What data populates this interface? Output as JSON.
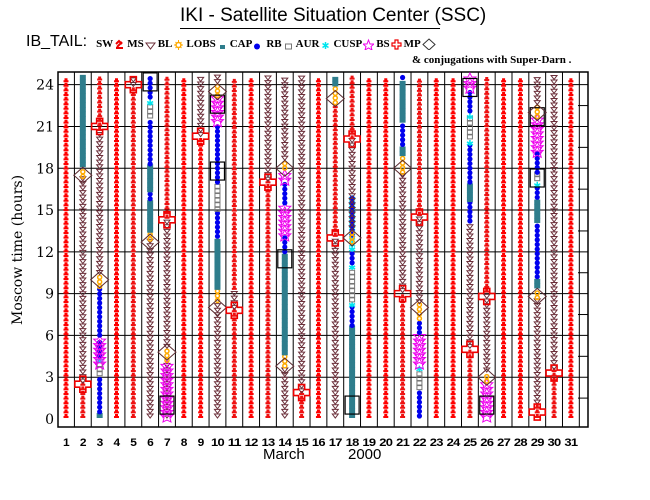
{
  "title": "IKI - Satellite Situation Center (SSC)",
  "legend": {
    "prefix": "IB_TAIL:",
    "items": [
      {
        "label": "SW",
        "region": "SW",
        "color": "#ff0000",
        "symbol": "sw-mark"
      },
      {
        "label": "MS",
        "region": "MS",
        "color": "#ee1111",
        "symbol": "ms-mark"
      },
      {
        "label": "BL",
        "region": "BL",
        "color": "#6b2f3a",
        "symbol": "triangle-down"
      },
      {
        "label": "LOBS",
        "region": "LOBS",
        "color": "#ffaa00",
        "symbol": "sun"
      },
      {
        "label": "CAP",
        "region": "CAP",
        "color": "#2e7d8c",
        "symbol": "square-filled"
      },
      {
        "label": "RB",
        "region": "RB",
        "color": "#0000ee",
        "symbol": "dot"
      },
      {
        "label": "AUR",
        "region": "AUR",
        "color": "#777777",
        "symbol": "square-open"
      },
      {
        "label": "CUSP",
        "region": "CUSP",
        "color": "#00e5ee",
        "symbol": "asterisk"
      },
      {
        "label": "BS",
        "region": "BS",
        "color": "#ee00ee",
        "symbol": "star"
      },
      {
        "label": "MP",
        "region": "MP",
        "color": "#ee0000",
        "symbol": "cross"
      }
    ],
    "diamond_note": "& conjugations with Super-Darn ."
  },
  "chart_data": {
    "type": "timeline",
    "title": "IKI - Satellite Situation Center (SSC)",
    "xlabel": "March",
    "xlabel_year": "2000",
    "ylabel": "Moscow time (hours)",
    "x_ticks": [
      1,
      2,
      3,
      4,
      5,
      6,
      7,
      8,
      9,
      10,
      11,
      12,
      13,
      14,
      15,
      16,
      17,
      18,
      19,
      20,
      21,
      22,
      23,
      24,
      25,
      26,
      27,
      28,
      29,
      30,
      31
    ],
    "y_ticks": [
      0,
      3,
      6,
      9,
      12,
      15,
      18,
      21,
      24
    ],
    "xlim": [
      1,
      32
    ],
    "ylim": [
      0,
      24.5
    ],
    "grid": true,
    "colors": {
      "SW": "#ff0000",
      "MS": "#ee1111",
      "BL": "#6b2f3a",
      "LOBS": "#ffaa00",
      "CAP": "#2e7d8c",
      "RB": "#0000ee",
      "AUR": "#777777",
      "CUSP": "#00e5ee",
      "BS": "#ee00ee",
      "MP": "#ee0000"
    },
    "days": [
      {
        "day": 1,
        "segments": [
          [
            "SW",
            0,
            24.5
          ]
        ]
      },
      {
        "day": 2,
        "segments": [
          [
            "MS",
            0,
            2.5
          ],
          [
            "BL",
            2.5,
            17.2
          ],
          [
            "LOBS",
            17.2,
            18
          ],
          [
            "CAP",
            18,
            24.5
          ]
        ],
        "mp": [
          2.5
        ],
        "diamonds": [
          17.5
        ]
      },
      {
        "day": 3,
        "segments": [
          [
            "CAP",
            0,
            0.3
          ],
          [
            "RB",
            0.3,
            3
          ],
          [
            "AUR",
            3,
            4
          ],
          [
            "CUSP",
            4,
            4.3
          ],
          [
            "RB",
            4.3,
            5.5
          ],
          [
            "BS",
            3.8,
            5.8
          ],
          [
            "RB",
            5.8,
            9.3
          ],
          [
            "LOBS",
            9.3,
            10.3
          ],
          [
            "BL",
            10.3,
            20.6
          ],
          [
            "MS",
            20.6,
            24.5
          ]
        ],
        "mp": [
          21
        ],
        "diamonds": [
          10
        ]
      },
      {
        "day": 4,
        "segments": [
          [
            "SW",
            0,
            24.5
          ]
        ]
      },
      {
        "day": 5,
        "segments": [
          [
            "MS",
            0,
            23.8
          ],
          [
            "BL",
            23.8,
            24.5
          ]
        ],
        "mp": [
          24
        ]
      },
      {
        "day": 6,
        "segments": [
          [
            "BL",
            0,
            12.7
          ],
          [
            "LOBS",
            12.7,
            13.3
          ],
          [
            "CAP",
            13.3,
            15.6
          ],
          [
            "RB",
            15.6,
            16.2
          ],
          [
            "CAP",
            16.2,
            18.1
          ],
          [
            "RB",
            18.1,
            21.5
          ],
          [
            "AUR",
            21.5,
            22.5
          ],
          [
            "CUSP",
            22.5,
            22.9
          ],
          [
            "RB",
            22.9,
            24.5
          ]
        ],
        "diamonds": [
          12.7
        ],
        "boxes": [
          24.2
        ]
      },
      {
        "day": 7,
        "segments": [
          [
            "BL",
            0,
            4
          ],
          [
            "BS",
            0,
            3.8
          ],
          [
            "LOBS",
            4,
            5
          ],
          [
            "BL",
            5,
            14.3
          ],
          [
            "MS",
            14.3,
            24.5
          ]
        ],
        "mp": [
          14.3
        ],
        "diamonds": [
          4.8
        ],
        "boxes": [
          1
        ]
      },
      {
        "day": 8,
        "segments": [
          [
            "SW",
            0,
            24.5
          ]
        ]
      },
      {
        "day": 9,
        "segments": [
          [
            "SW",
            0,
            20.2
          ],
          [
            "BL",
            20.2,
            24.5
          ]
        ],
        "mp": [
          20.3
        ]
      },
      {
        "day": 10,
        "segments": [
          [
            "BL",
            0,
            8.3
          ],
          [
            "LOBS",
            8.3,
            9.2
          ],
          [
            "CAP",
            9.2,
            12.9
          ],
          [
            "RB",
            12.9,
            14.8
          ],
          [
            "AUR",
            14.8,
            16.8
          ],
          [
            "RB",
            16.8,
            21.2
          ],
          [
            "BS",
            21.2,
            23
          ],
          [
            "LOBS",
            23,
            24
          ],
          [
            "BL",
            24,
            24.5
          ]
        ],
        "diamonds": [
          8,
          23.5
        ],
        "boxes": [
          17.8,
          22.6
        ]
      },
      {
        "day": 11,
        "segments": [
          [
            "MS",
            0,
            7.8
          ],
          [
            "BL",
            7.8,
            9.2
          ],
          [
            "MS",
            9.2,
            24.5
          ]
        ],
        "mp": [
          7.8
        ]
      },
      {
        "day": 12,
        "segments": [
          [
            "SW",
            0,
            24.5
          ]
        ]
      },
      {
        "day": 13,
        "segments": [
          [
            "MS",
            0,
            17
          ],
          [
            "BL",
            17,
            24.5
          ]
        ],
        "mp": [
          17
        ]
      },
      {
        "day": 14,
        "segments": [
          [
            "BL",
            0,
            3.6
          ],
          [
            "LOBS",
            3.6,
            4.5
          ],
          [
            "CAP",
            4.5,
            11.8
          ],
          [
            "RB",
            11.8,
            13
          ],
          [
            "BS",
            13,
            15.3
          ],
          [
            "RB",
            15.3,
            17
          ],
          [
            "BS",
            17,
            17.8
          ],
          [
            "LOBS",
            17.8,
            18.5
          ],
          [
            "BL",
            18.5,
            24.5
          ]
        ],
        "diamonds": [
          3.8,
          18
        ],
        "boxes": [
          11.5
        ]
      },
      {
        "day": 15,
        "segments": [
          [
            "MS",
            0,
            1.8
          ],
          [
            "BL",
            1.8,
            24.5
          ]
        ],
        "mp": [
          1.9
        ]
      },
      {
        "day": 16,
        "segments": [
          [
            "SW",
            0,
            24.5
          ]
        ]
      },
      {
        "day": 17,
        "segments": [
          [
            "BL",
            0,
            13
          ],
          [
            "MS",
            13,
            22.5
          ],
          [
            "LOBS",
            22.5,
            23.8
          ],
          [
            "CAP",
            23.8,
            24.5
          ]
        ],
        "mp": [
          13
        ],
        "diamonds": [
          23
        ]
      },
      {
        "day": 18,
        "segments": [
          [
            "CAP",
            0,
            6.5
          ],
          [
            "RB",
            6.5,
            8
          ],
          [
            "CUSP",
            8,
            8.3
          ],
          [
            "AUR",
            8.3,
            10.7
          ],
          [
            "CUSP",
            10.7,
            11
          ],
          [
            "RB",
            11,
            12
          ],
          [
            "CUSP",
            12,
            16
          ],
          [
            "RB",
            16,
            13
          ],
          [
            "LOBS",
            12.5,
            13.5
          ],
          [
            "BL",
            13.5,
            20
          ],
          [
            "MS",
            20,
            24.5
          ]
        ],
        "mp": [
          20.1
        ],
        "diamonds": [
          13
        ],
        "boxes": [
          1
        ]
      },
      {
        "day": 19,
        "segments": [
          [
            "SW",
            0,
            24.5
          ]
        ]
      },
      {
        "day": 20,
        "segments": [
          [
            "SW",
            0,
            24.5
          ]
        ]
      },
      {
        "day": 21,
        "segments": [
          [
            "MS",
            0,
            9
          ],
          [
            "BL",
            9,
            17.5
          ],
          [
            "LOBS",
            17.5,
            18.8
          ],
          [
            "CAP",
            18.8,
            19.5
          ],
          [
            "RB",
            19.5,
            21.2
          ],
          [
            "CAP",
            21.2,
            24.3
          ],
          [
            "RB",
            24.3,
            24.5
          ]
        ],
        "mp": [
          9
        ],
        "diamonds": [
          18
        ]
      },
      {
        "day": 22,
        "segments": [
          [
            "RB",
            0,
            2
          ],
          [
            "AUR",
            2,
            3.4
          ],
          [
            "CUSP",
            3.4,
            3.8
          ],
          [
            "BS",
            3.8,
            6
          ],
          [
            "RB",
            6,
            7
          ],
          [
            "LOBS",
            7,
            8.2
          ],
          [
            "BL",
            8.2,
            14.5
          ],
          [
            "MS",
            14.5,
            24.5
          ]
        ],
        "mp": [
          14.5
        ],
        "diamonds": [
          8
        ]
      },
      {
        "day": 23,
        "segments": [
          [
            "SW",
            0,
            24.5
          ]
        ]
      },
      {
        "day": 24,
        "segments": [
          [
            "SW",
            0,
            24.5
          ]
        ]
      },
      {
        "day": 25,
        "segments": [
          [
            "MS",
            0,
            5
          ],
          [
            "BL",
            5,
            14
          ],
          [
            "RB",
            14,
            15.5
          ],
          [
            "CAP",
            15.5,
            16.8
          ],
          [
            "RB",
            16.8,
            19.6
          ],
          [
            "CUSP",
            19.6,
            20
          ],
          [
            "AUR",
            20,
            21.5
          ],
          [
            "CUSP",
            21.5,
            21.9
          ],
          [
            "RB",
            21.9,
            23.6
          ],
          [
            "BS",
            23.6,
            24.5
          ]
        ],
        "mp": [
          5
        ],
        "boxes": [
          23.8
        ]
      },
      {
        "day": 26,
        "segments": [
          [
            "BS",
            0,
            2.5
          ],
          [
            "LOBS",
            2.5,
            3.3
          ],
          [
            "BL",
            3.3,
            9
          ],
          [
            "MS",
            9,
            24.5
          ]
        ],
        "mp": [
          8.8
        ],
        "diamonds": [
          3
        ],
        "boxes": [
          1
        ]
      },
      {
        "day": 27,
        "segments": [
          [
            "SW",
            0,
            24.5
          ]
        ]
      },
      {
        "day": 28,
        "segments": [
          [
            "SW",
            0,
            24.5
          ]
        ]
      },
      {
        "day": 29,
        "segments": [
          [
            "MS",
            0,
            1
          ],
          [
            "BL",
            1,
            8.5
          ],
          [
            "LOBS",
            8.5,
            9.3
          ],
          [
            "CAP",
            9.3,
            10
          ],
          [
            "RB",
            10,
            14
          ],
          [
            "CAP",
            14,
            15.7
          ],
          [
            "RB",
            15.7,
            16.6
          ],
          [
            "CUSP",
            16.6,
            17
          ],
          [
            "AUR",
            17,
            17.5
          ],
          [
            "RB",
            17.5,
            19
          ],
          [
            "BS",
            19,
            21.5
          ],
          [
            "LOBS",
            21.5,
            22.5
          ],
          [
            "BL",
            22.5,
            24.5
          ]
        ],
        "mp": [
          0.5
        ],
        "diamonds": [
          8.8,
          22
        ],
        "boxes": [
          17.3,
          21.7
        ]
      },
      {
        "day": 30,
        "segments": [
          [
            "MS",
            0,
            3.5
          ],
          [
            "BL",
            3.5,
            24.5
          ]
        ],
        "mp": [
          3.3
        ]
      },
      {
        "day": 31,
        "segments": [
          [
            "SW",
            0,
            24.5
          ]
        ]
      }
    ]
  }
}
